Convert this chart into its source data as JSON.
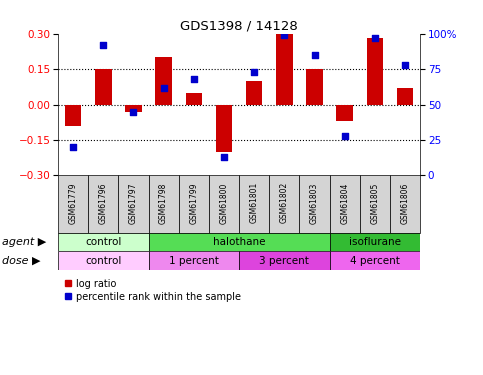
{
  "title": "GDS1398 / 14128",
  "samples": [
    "GSM61779",
    "GSM61796",
    "GSM61797",
    "GSM61798",
    "GSM61799",
    "GSM61800",
    "GSM61801",
    "GSM61802",
    "GSM61803",
    "GSM61804",
    "GSM61805",
    "GSM61806"
  ],
  "log_ratio": [
    -0.09,
    0.15,
    -0.03,
    0.2,
    0.05,
    -0.2,
    0.1,
    0.3,
    0.15,
    -0.07,
    0.28,
    0.07
  ],
  "percentile": [
    20,
    92,
    45,
    62,
    68,
    13,
    73,
    99,
    85,
    28,
    97,
    78
  ],
  "ylim": [
    -0.3,
    0.3
  ],
  "yticks_left": [
    -0.3,
    -0.15,
    0,
    0.15,
    0.3
  ],
  "yticks_right": [
    0,
    25,
    50,
    75,
    100
  ],
  "hlines": [
    0.15,
    0.0,
    -0.15
  ],
  "bar_color": "#cc0000",
  "dot_color": "#0000cc",
  "agent_groups": [
    {
      "label": "control",
      "start": 0,
      "end": 3,
      "color": "#ccffcc"
    },
    {
      "label": "halothane",
      "start": 3,
      "end": 9,
      "color": "#55dd55"
    },
    {
      "label": "isoflurane",
      "start": 9,
      "end": 12,
      "color": "#33bb33"
    }
  ],
  "dose_groups": [
    {
      "label": "control",
      "start": 0,
      "end": 3,
      "color": "#ffccff"
    },
    {
      "label": "1 percent",
      "start": 3,
      "end": 6,
      "color": "#ee88ee"
    },
    {
      "label": "3 percent",
      "start": 6,
      "end": 9,
      "color": "#dd44dd"
    },
    {
      "label": "4 percent",
      "start": 9,
      "end": 12,
      "color": "#ee66ee"
    }
  ],
  "agent_label": "agent",
  "dose_label": "dose",
  "legend_bar_label": "log ratio",
  "legend_dot_label": "percentile rank within the sample",
  "bar_width": 0.55,
  "dotsize": 20,
  "sample_bg_color": "#d4d4d4",
  "sample_label_fontsize": 5.5,
  "row_label_fontsize": 8,
  "group_label_fontsize": 7.5
}
